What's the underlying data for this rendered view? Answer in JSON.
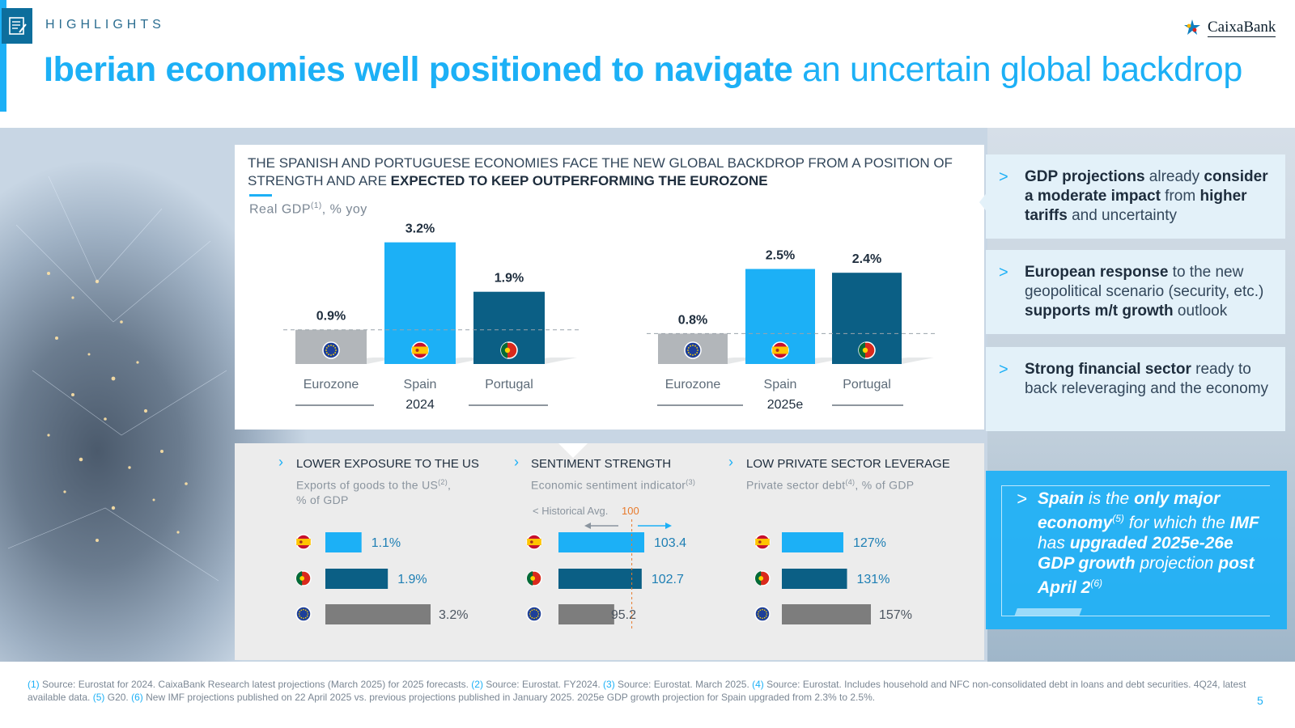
{
  "header": {
    "section": "HIGHLIGHTS",
    "brand": "CaixaBank",
    "title_bold": "Iberian economies well positioned to navigate",
    "title_light": " an uncertain global backdrop"
  },
  "panel": {
    "heading_light": "The Spanish and Portuguese economies face the new global backdrop from a position of strength and are ",
    "heading_bold": "expected to keep outperforming the Eurozone",
    "subtitle": "Real GDP",
    "subtitle_sup": "(1)",
    "subtitle_tail": ", % yoy"
  },
  "chart_data": [
    {
      "type": "bar",
      "title": "Real GDP(1), % yoy",
      "group": "2024",
      "categories": [
        "Eurozone",
        "Spain",
        "Portugal"
      ],
      "values": [
        0.9,
        3.2,
        1.9
      ],
      "labels": [
        "0.9%",
        "3.2%",
        "1.9%"
      ],
      "unit": "%",
      "reference": "Eurozone level (dashed line)",
      "colors": [
        "#b2b6ba",
        "#1cb0f6",
        "#0b5f85"
      ]
    },
    {
      "type": "bar",
      "title": "Real GDP(1), % yoy",
      "group": "2025e",
      "categories": [
        "Eurozone",
        "Spain",
        "Portugal"
      ],
      "values": [
        0.8,
        2.5,
        2.4
      ],
      "labels": [
        "0.8%",
        "2.5%",
        "2.4%"
      ],
      "unit": "%",
      "reference": "Eurozone level (dashed line)",
      "colors": [
        "#b2b6ba",
        "#1cb0f6",
        "#0b5f85"
      ]
    },
    {
      "type": "bar",
      "orientation": "horizontal",
      "title": "LOWER EXPOSURE TO THE US",
      "subtitle": "Exports of goods to the US(2), % of GDP",
      "categories": [
        "Spain",
        "Portugal",
        "Eurozone"
      ],
      "values": [
        1.1,
        1.9,
        3.2
      ],
      "labels": [
        "1.1%",
        "1.9%",
        "3.2%"
      ],
      "colors": [
        "#1cb0f6",
        "#0b5f85",
        "#7d7d7d"
      ]
    },
    {
      "type": "bar",
      "orientation": "horizontal",
      "title": "SENTIMENT STRENGTH",
      "subtitle": "Economic sentiment indicator(3)",
      "categories": [
        "Spain",
        "Portugal",
        "Eurozone"
      ],
      "values": [
        103.4,
        102.7,
        95.2
      ],
      "labels": [
        "103.4",
        "102.7",
        "95.2"
      ],
      "reference_label": "< Historical Avg.",
      "reference_value": 100,
      "reference_value_label": "100",
      "colors": [
        "#1cb0f6",
        "#0b5f85",
        "#7d7d7d"
      ]
    },
    {
      "type": "bar",
      "orientation": "horizontal",
      "title": "LOW PRIVATE SECTOR LEVERAGE",
      "subtitle": "Private sector debt(4), % of GDP",
      "categories": [
        "Spain",
        "Portugal",
        "Eurozone"
      ],
      "values": [
        127,
        131,
        157
      ],
      "labels": [
        "127%",
        "131%",
        "157%"
      ],
      "colors": [
        "#1cb0f6",
        "#0b5f85",
        "#7d7d7d"
      ]
    }
  ],
  "lower": {
    "col1_title": "LOWER EXPOSURE TO THE US",
    "col1_sub_a": "Exports of goods to the US",
    "col1_sub_sup": "(2)",
    "col1_sub_b": ",",
    "col1_sub_c": "% of GDP",
    "col2_title": "SENTIMENT STRENGTH",
    "col2_sub_a": "Economic sentiment indicator",
    "col2_sub_sup": "(3)",
    "col3_title": "LOW PRIVATE SECTOR LEVERAGE",
    "col3_sub_a": "Private sector debt",
    "col3_sub_sup": "(4)",
    "col3_sub_b": ", % of GDP"
  },
  "right": {
    "box1": {
      "b1": "GDP projections",
      "t1": " already ",
      "b2": "consider a moderate impact",
      "t2": " from ",
      "b3": "higher tariffs",
      "t3": " and uncertainty"
    },
    "box2": {
      "b1": "European response",
      "t1": " to the new geopolitical scenario (security, etc.) ",
      "b2": "supports m/t growth",
      "t2": " outlook"
    },
    "box3": {
      "b1": "Strong financial sector",
      "t1": " ready to back releveraging and the economy"
    },
    "highlight": {
      "b1": "Spain",
      "t1": " is the ",
      "b2": "only major economy",
      "sup1": "(5)",
      "t2": " for which the ",
      "b3": "IMF",
      "t3": " has ",
      "b4": "upgraded 2025e-26e GDP growth",
      "t4": " projection ",
      "b5": "post April 2",
      "sup2": "(6)"
    }
  },
  "footnote": {
    "n1": "(1)",
    "t1": " Source: Eurostat for 2024. CaixaBank Research latest projections (March 2025) for 2025 forecasts. ",
    "n2": "(2)",
    "t2": " Source: Eurostat. FY2024. ",
    "n3": "(3)",
    "t3": " Source: Eurostat. March 2025. ",
    "n4": "(4)",
    "t4": " Source: Eurostat. Includes household and NFC non-consolidated debt in loans and debt securities. 4Q24, latest available data. ",
    "n5": "(5)",
    "t5": " G20. ",
    "n6": "(6)",
    "t6": " New IMF projections published on 22 April 2025 vs. previous projections published in January 2025. 2025e GDP growth projection for Spain upgraded from 2.3% to 2.5%."
  },
  "page_number": "5",
  "colors": {
    "accent": "#1cb0f6",
    "navy": "#0b5f85",
    "grey": "#b2b6ba",
    "dark_grey": "#7d7d7d",
    "orange": "#e87a2b"
  },
  "icons": {
    "eu": "eu-flag-icon",
    "es": "spain-flag-icon",
    "pt": "portugal-flag-icon"
  }
}
